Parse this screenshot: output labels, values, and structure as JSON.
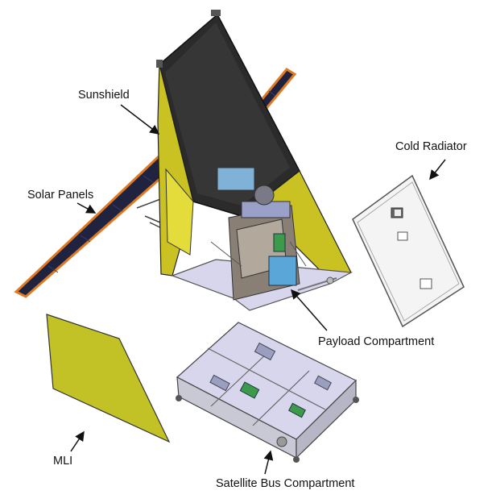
{
  "figure": {
    "labels": {
      "sunshield": "Sunshield",
      "solar_panels": "Solar Panels",
      "cold_radiator": "Cold Radiator",
      "payload_compartment": "Payload Compartment",
      "mli": "MLI",
      "satellite_bus_compartment": "Satellite Bus Compartment"
    }
  },
  "colors": {
    "sunshield_yellow": "#c9c222",
    "sunshield_dark": "#2b2b2b",
    "solar_cell": "#1f2340",
    "solar_edge": "#e07a22",
    "mli_yellow": "#c2c226",
    "bus_panel": "#c9c9d6",
    "bus_interior": "#d8d6ec",
    "payload_blue": "#5aa6d8",
    "radiator_white": "#f4f4f4"
  }
}
